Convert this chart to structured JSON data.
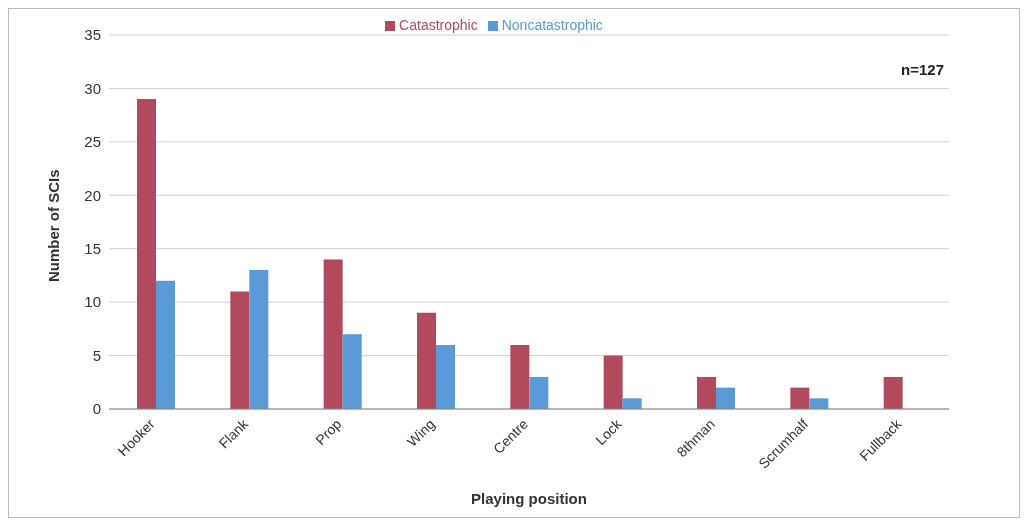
{
  "chart_data": {
    "type": "bar",
    "xlabel": "Playing position",
    "ylabel": "Number of SCIs",
    "annotations": [
      "n=127"
    ],
    "categories": [
      "Hooker",
      "Flank",
      "Prop",
      "Wing",
      "Centre",
      "Lock",
      "8thman",
      "Scrumhalf",
      "Fullback"
    ],
    "series": [
      {
        "name": "Catastrophic",
        "color": "#b04a5c",
        "values": [
          29,
          11,
          14,
          9,
          6,
          5,
          3,
          2,
          3
        ]
      },
      {
        "name": "Noncatastrophic",
        "color": "#5a9ad6",
        "values": [
          12,
          13,
          7,
          6,
          3,
          1,
          2,
          1,
          0
        ]
      }
    ],
    "ylim": [
      0,
      35
    ],
    "yticks": [
      0,
      5,
      10,
      15,
      20,
      25,
      30,
      35
    ],
    "grid": "y",
    "legend": "top"
  }
}
